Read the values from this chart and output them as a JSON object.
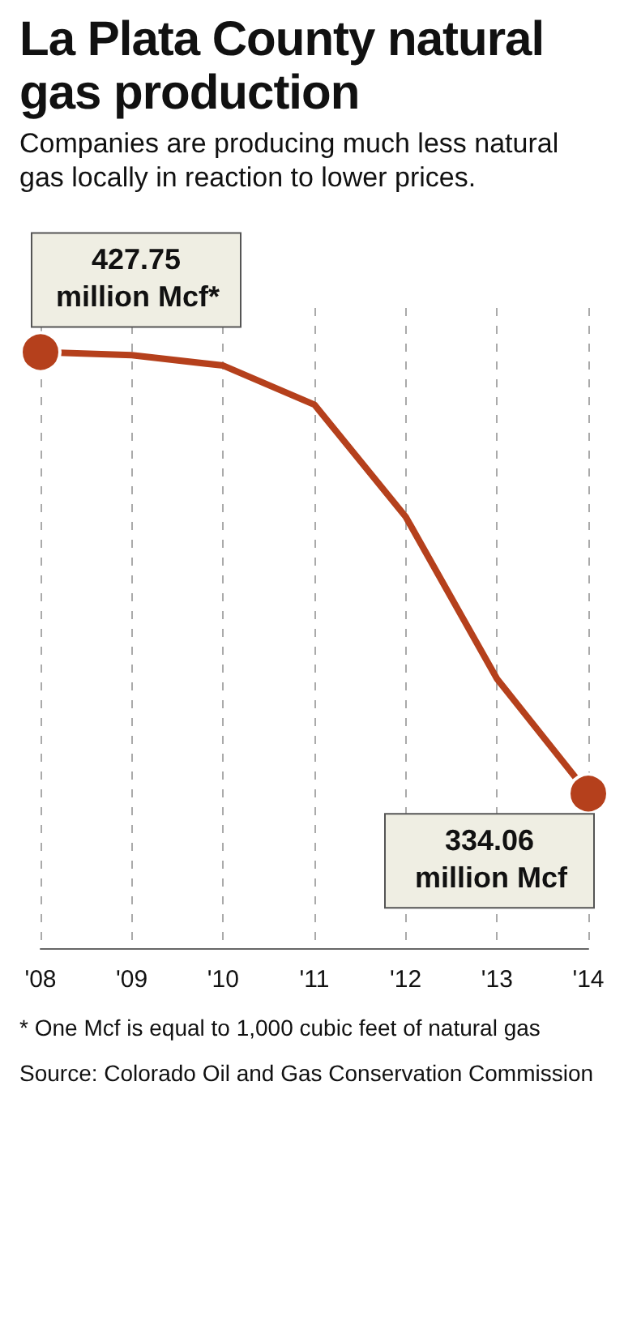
{
  "chart_data": {
    "type": "line",
    "title": "La Plata County natural gas production",
    "subtitle": "Companies are producing much less natural gas locally in reaction to lower prices.",
    "categories": [
      "'08",
      "'09",
      "'10",
      "'11",
      "'12",
      "'13",
      "'14"
    ],
    "series": [
      {
        "color": "#b5401c",
        "values": [
          427.75,
          427.1,
          424.9,
          416.6,
          392.8,
          358.4,
          334.06
        ],
        "value_labels": [
          "427.75",
          null,
          null,
          null,
          null,
          null,
          "334.06"
        ]
      }
    ],
    "tick_labels": "x",
    "grid": "x",
    "line_style": "solid",
    "annotations": [
      {
        "text": "million Mcf*",
        "x": "'08",
        "y": 427.75
      },
      {
        "text": "million Mcf",
        "x": "'14",
        "y": 334.06
      },
      "* One Mcf is equal to 1,000 cubic feet of natural gas",
      "Source: Colorado Oil and Gas Conservation Commission"
    ]
  }
}
